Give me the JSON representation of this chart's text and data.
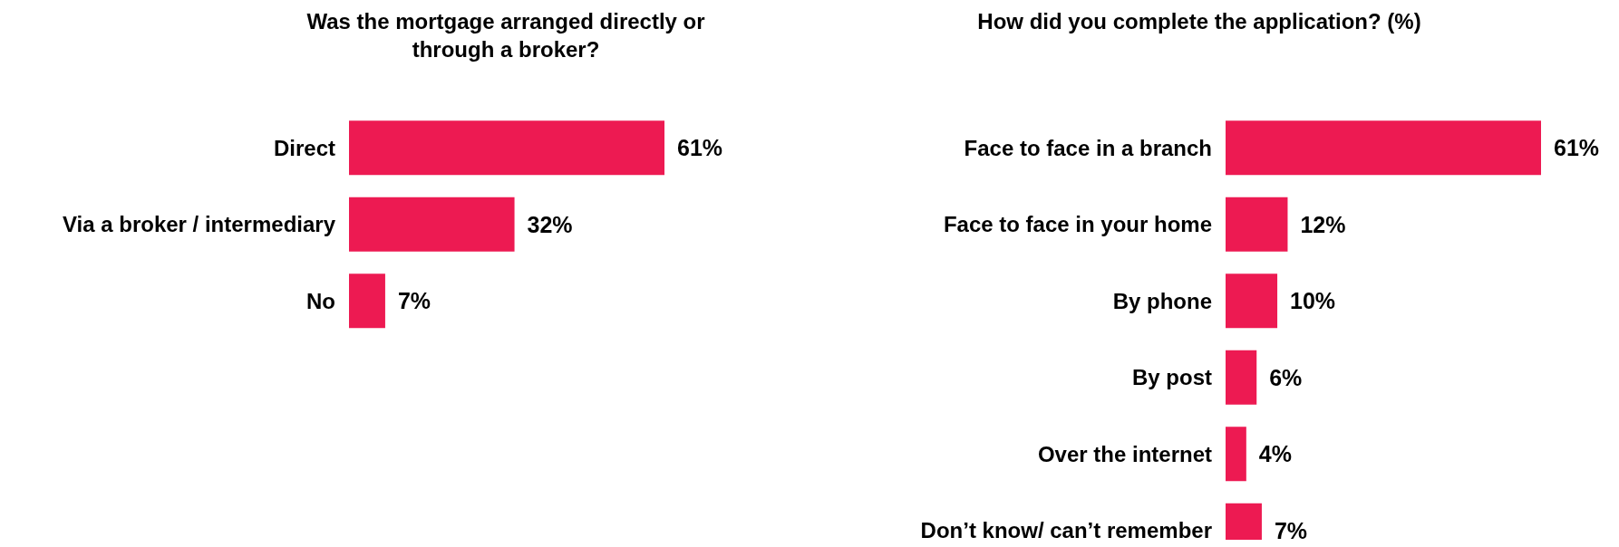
{
  "chart_data": [
    {
      "type": "bar",
      "orientation": "horizontal",
      "title": "Was the mortgage arranged directly or through a broker?",
      "categories": [
        "Direct",
        "Via a broker / intermediary",
        "No"
      ],
      "values": [
        61,
        32,
        7
      ],
      "value_labels": [
        "61%",
        "32%",
        "7%"
      ],
      "color": "#ed1a52"
    },
    {
      "type": "bar",
      "orientation": "horizontal",
      "title": "How did you complete the application? (%)",
      "categories": [
        "Face to face in a branch",
        "Face to face in your home",
        "By phone",
        "By post",
        "Over the internet",
        "Don’t know/ can’t remember"
      ],
      "values": [
        61,
        12,
        10,
        6,
        4,
        7
      ],
      "value_labels": [
        "61%",
        "12%",
        "10%",
        "6%",
        "4%",
        "7%"
      ],
      "color": "#ed1a52"
    }
  ]
}
